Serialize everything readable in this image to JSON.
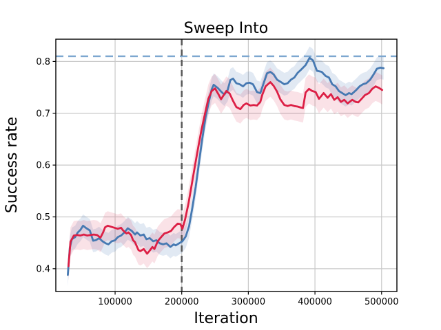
{
  "figure": {
    "title": "Sweep Into",
    "xlabel": "Iteration",
    "ylabel": "Success rate"
  },
  "colors": {
    "background": "#ffffff",
    "spine": "#000000",
    "grid": "#c9c9c9",
    "blue_series": "#4679b2",
    "red_series": "#dc1f45",
    "target_hline": "#7da7d0",
    "event_vline": "#595959"
  },
  "chart_data": {
    "type": "line",
    "title": "Sweep Into",
    "xlabel": "Iteration",
    "ylabel": "Success rate",
    "xlim": [
      11000,
      523000
    ],
    "ylim": [
      0.356,
      0.843
    ],
    "grid": true,
    "legend_visible": false,
    "xtick_values": [
      100000,
      200000,
      300000,
      400000,
      500000
    ],
    "xtick_labels": [
      "100000",
      "200000",
      "300000",
      "400000",
      "500000"
    ],
    "ytick_values": [
      0.4,
      0.5,
      0.6,
      0.7,
      0.8
    ],
    "ytick_labels": [
      "0.4",
      "0.5",
      "0.6",
      "0.7",
      "0.8"
    ],
    "hline": {
      "y": 0.81,
      "style": "dashed",
      "color": "#7da7d0",
      "width": 2.5,
      "dash": "11 7"
    },
    "vline": {
      "x": 200000,
      "style": "dashed",
      "color": "#595959",
      "width": 2.5,
      "dash": "9 6"
    },
    "series": [
      {
        "name": "blue",
        "color": "#4679b2",
        "line_width": 2.8,
        "band_halfwidth": 0.022,
        "band_opacity": 0.16,
        "points": [
          [
            29000,
            0.388
          ],
          [
            32000,
            0.44
          ],
          [
            35000,
            0.457
          ],
          [
            40000,
            0.461
          ],
          [
            44000,
            0.47
          ],
          [
            48000,
            0.475
          ],
          [
            52000,
            0.483
          ],
          [
            57000,
            0.478
          ],
          [
            62000,
            0.474
          ],
          [
            67000,
            0.454
          ],
          [
            71000,
            0.455
          ],
          [
            76000,
            0.459
          ],
          [
            81000,
            0.453
          ],
          [
            86000,
            0.449
          ],
          [
            90000,
            0.447
          ],
          [
            95000,
            0.453
          ],
          [
            100000,
            0.455
          ],
          [
            104000,
            0.461
          ],
          [
            109000,
            0.464
          ],
          [
            114000,
            0.47
          ],
          [
            119000,
            0.478
          ],
          [
            125000,
            0.473
          ],
          [
            130000,
            0.466
          ],
          [
            133000,
            0.47
          ],
          [
            138000,
            0.464
          ],
          [
            143000,
            0.466
          ],
          [
            147000,
            0.457
          ],
          [
            152000,
            0.459
          ],
          [
            157000,
            0.453
          ],
          [
            162000,
            0.455
          ],
          [
            167000,
            0.449
          ],
          [
            172000,
            0.447
          ],
          [
            177000,
            0.449
          ],
          [
            183000,
            0.442
          ],
          [
            188000,
            0.447
          ],
          [
            191000,
            0.445
          ],
          [
            196000,
            0.449
          ],
          [
            201000,
            0.453
          ],
          [
            206000,
            0.462
          ],
          [
            211000,
            0.482
          ],
          [
            216000,
            0.518
          ],
          [
            221000,
            0.558
          ],
          [
            226000,
            0.606
          ],
          [
            231000,
            0.652
          ],
          [
            236000,
            0.694
          ],
          [
            241000,
            0.724
          ],
          [
            245000,
            0.746
          ],
          [
            248000,
            0.755
          ],
          [
            254000,
            0.749
          ],
          [
            259000,
            0.742
          ],
          [
            264000,
            0.736
          ],
          [
            269000,
            0.745
          ],
          [
            273000,
            0.764
          ],
          [
            277000,
            0.767
          ],
          [
            282000,
            0.758
          ],
          [
            287000,
            0.756
          ],
          [
            292000,
            0.752
          ],
          [
            297000,
            0.758
          ],
          [
            302000,
            0.759
          ],
          [
            307000,
            0.756
          ],
          [
            313000,
            0.741
          ],
          [
            318000,
            0.739
          ],
          [
            323000,
            0.758
          ],
          [
            328000,
            0.777
          ],
          [
            333000,
            0.78
          ],
          [
            338000,
            0.775
          ],
          [
            343000,
            0.765
          ],
          [
            348000,
            0.761
          ],
          [
            354000,
            0.756
          ],
          [
            359000,
            0.758
          ],
          [
            364000,
            0.765
          ],
          [
            369000,
            0.769
          ],
          [
            374000,
            0.778
          ],
          [
            379000,
            0.784
          ],
          [
            386000,
            0.793
          ],
          [
            392000,
            0.807
          ],
          [
            397000,
            0.802
          ],
          [
            403000,
            0.782
          ],
          [
            410000,
            0.78
          ],
          [
            416000,
            0.772
          ],
          [
            421000,
            0.769
          ],
          [
            426000,
            0.756
          ],
          [
            431000,
            0.752
          ],
          [
            436000,
            0.743
          ],
          [
            441000,
            0.739
          ],
          [
            446000,
            0.735
          ],
          [
            451000,
            0.739
          ],
          [
            455000,
            0.737
          ],
          [
            462000,
            0.745
          ],
          [
            467000,
            0.752
          ],
          [
            472000,
            0.756
          ],
          [
            477000,
            0.758
          ],
          [
            483000,
            0.765
          ],
          [
            488000,
            0.775
          ],
          [
            493000,
            0.786
          ],
          [
            498000,
            0.788
          ],
          [
            503000,
            0.787
          ]
        ]
      },
      {
        "name": "red",
        "color": "#dc1f45",
        "line_width": 2.8,
        "band_halfwidth": 0.028,
        "band_opacity": 0.13,
        "points": [
          [
            30000,
            0.405
          ],
          [
            33000,
            0.452
          ],
          [
            38000,
            0.464
          ],
          [
            43000,
            0.465
          ],
          [
            48000,
            0.464
          ],
          [
            53000,
            0.466
          ],
          [
            58000,
            0.464
          ],
          [
            63000,
            0.465
          ],
          [
            68000,
            0.466
          ],
          [
            73000,
            0.465
          ],
          [
            78000,
            0.46
          ],
          [
            82000,
            0.47
          ],
          [
            85000,
            0.48
          ],
          [
            89000,
            0.483
          ],
          [
            94000,
            0.481
          ],
          [
            99000,
            0.479
          ],
          [
            104000,
            0.477
          ],
          [
            109000,
            0.479
          ],
          [
            112000,
            0.474
          ],
          [
            117000,
            0.468
          ],
          [
            120000,
            0.47
          ],
          [
            124000,
            0.465
          ],
          [
            127000,
            0.455
          ],
          [
            130000,
            0.451
          ],
          [
            135000,
            0.436
          ],
          [
            138000,
            0.434
          ],
          [
            143000,
            0.438
          ],
          [
            148000,
            0.429
          ],
          [
            152000,
            0.435
          ],
          [
            156000,
            0.442
          ],
          [
            159000,
            0.438
          ],
          [
            164000,
            0.453
          ],
          [
            169000,
            0.461
          ],
          [
            174000,
            0.468
          ],
          [
            179000,
            0.47
          ],
          [
            184000,
            0.473
          ],
          [
            189000,
            0.481
          ],
          [
            194000,
            0.487
          ],
          [
            198000,
            0.486
          ],
          [
            201000,
            0.477
          ],
          [
            205000,
            0.495
          ],
          [
            210000,
            0.525
          ],
          [
            215000,
            0.562
          ],
          [
            220000,
            0.6
          ],
          [
            225000,
            0.636
          ],
          [
            230000,
            0.67
          ],
          [
            235000,
            0.7
          ],
          [
            240000,
            0.728
          ],
          [
            245000,
            0.743
          ],
          [
            250000,
            0.748
          ],
          [
            255000,
            0.737
          ],
          [
            259000,
            0.727
          ],
          [
            263000,
            0.735
          ],
          [
            267000,
            0.743
          ],
          [
            272000,
            0.738
          ],
          [
            277000,
            0.724
          ],
          [
            282000,
            0.712
          ],
          [
            288000,
            0.708
          ],
          [
            293000,
            0.716
          ],
          [
            297000,
            0.719
          ],
          [
            303000,
            0.715
          ],
          [
            308000,
            0.716
          ],
          [
            313000,
            0.715
          ],
          [
            318000,
            0.722
          ],
          [
            321000,
            0.736
          ],
          [
            326000,
            0.752
          ],
          [
            333000,
            0.76
          ],
          [
            338000,
            0.753
          ],
          [
            343000,
            0.742
          ],
          [
            348000,
            0.727
          ],
          [
            354000,
            0.716
          ],
          [
            359000,
            0.714
          ],
          [
            364000,
            0.716
          ],
          [
            369000,
            0.714
          ],
          [
            374000,
            0.713
          ],
          [
            379000,
            0.711
          ],
          [
            382000,
            0.71
          ],
          [
            386000,
            0.74
          ],
          [
            391000,
            0.747
          ],
          [
            396000,
            0.743
          ],
          [
            401000,
            0.741
          ],
          [
            406000,
            0.728
          ],
          [
            413000,
            0.739
          ],
          [
            419000,
            0.73
          ],
          [
            424000,
            0.737
          ],
          [
            429000,
            0.726
          ],
          [
            434000,
            0.731
          ],
          [
            439000,
            0.722
          ],
          [
            444000,
            0.726
          ],
          [
            449000,
            0.719
          ],
          [
            456000,
            0.726
          ],
          [
            461000,
            0.722
          ],
          [
            465000,
            0.721
          ],
          [
            470000,
            0.728
          ],
          [
            475000,
            0.735
          ],
          [
            481000,
            0.739
          ],
          [
            486000,
            0.747
          ],
          [
            491000,
            0.752
          ],
          [
            496000,
            0.749
          ],
          [
            501000,
            0.745
          ]
        ]
      }
    ]
  }
}
